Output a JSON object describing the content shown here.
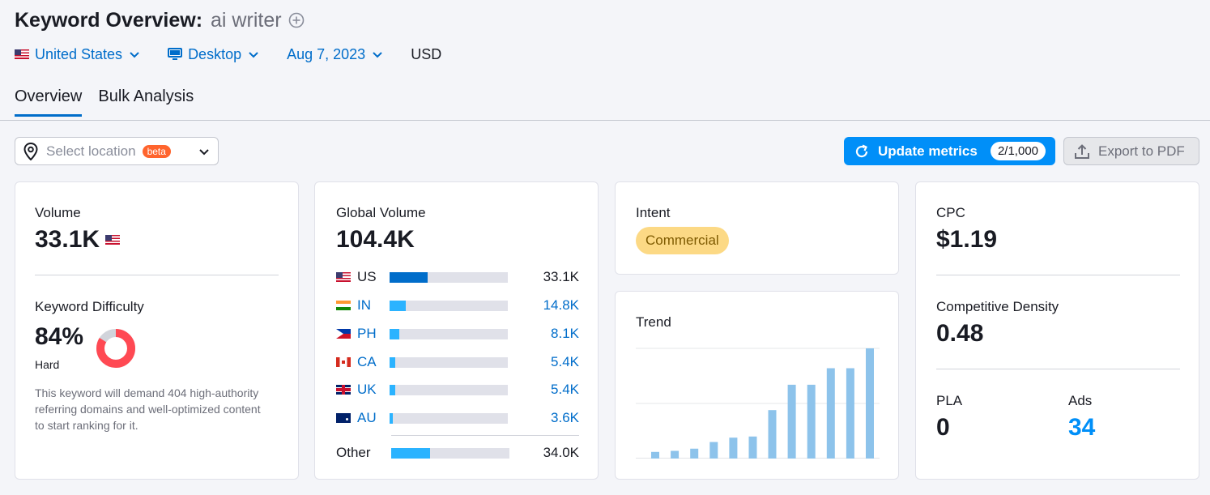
{
  "header": {
    "title": "Keyword Overview:",
    "keyword": "ai writer",
    "filters": {
      "country": "United States",
      "device": "Desktop",
      "date": "Aug 7, 2023",
      "currency": "USD"
    }
  },
  "tabs": [
    {
      "label": "Overview",
      "active": true
    },
    {
      "label": "Bulk Analysis",
      "active": false
    }
  ],
  "toolbar": {
    "location_placeholder": "Select location",
    "beta_badge": "beta",
    "update_label": "Update metrics",
    "update_count": "2/1,000",
    "export_label": "Export to PDF"
  },
  "volume_card": {
    "volume_label": "Volume",
    "volume_value": "33.1K",
    "kd_label": "Keyword Difficulty",
    "kd_value": "84%",
    "kd_percent": 84,
    "kd_level": "Hard",
    "kd_description": "This keyword will demand 404 high-authority referring domains and well-optimized content to start ranking for it."
  },
  "global_card": {
    "label": "Global Volume",
    "value": "104.4K",
    "countries": [
      {
        "code": "US",
        "value": "33.1K",
        "share": 0.32
      },
      {
        "code": "IN",
        "value": "14.8K",
        "share": 0.14
      },
      {
        "code": "PH",
        "value": "8.1K",
        "share": 0.08
      },
      {
        "code": "CA",
        "value": "5.4K",
        "share": 0.05
      },
      {
        "code": "UK",
        "value": "5.4K",
        "share": 0.05
      },
      {
        "code": "AU",
        "value": "3.6K",
        "share": 0.03
      }
    ],
    "other_label": "Other",
    "other_value": "34.0K",
    "other_share": 0.33
  },
  "intent_card": {
    "label": "Intent",
    "badge": "Commercial"
  },
  "trend_card": {
    "label": "Trend",
    "values": [
      0.06,
      0.07,
      0.09,
      0.15,
      0.19,
      0.2,
      0.44,
      0.67,
      0.67,
      0.82,
      0.82,
      1.0
    ]
  },
  "cpc_card": {
    "cpc_label": "CPC",
    "cpc_value": "$1.19",
    "density_label": "Competitive Density",
    "density_value": "0.48",
    "pla_label": "PLA",
    "pla_value": "0",
    "ads_label": "Ads",
    "ads_value": "34"
  },
  "colors": {
    "accent": "#006dca",
    "button": "#008ff8",
    "kd_red": "#ff4953",
    "bar_blue": "#2bb3ff",
    "trend_bar": "#8dc3eb",
    "intent_badge": "#fcd985"
  }
}
